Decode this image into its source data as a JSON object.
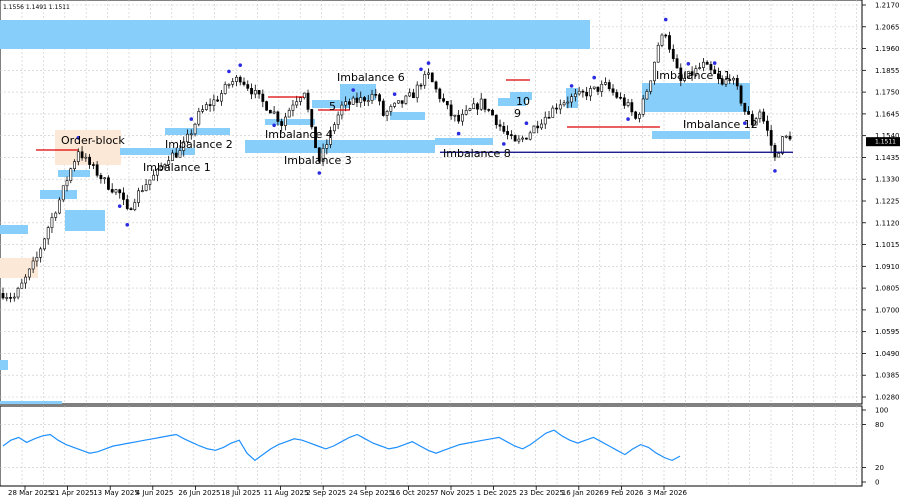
{
  "header": {
    "ohlc": "1.1556 1.1491 1.1511"
  },
  "colors": {
    "imbalance": "#87CEFA",
    "order_block": "#FCE8D6",
    "level_red": "#DD0000",
    "level_blue": "#000080",
    "wick_marker": "#2B2BE0",
    "candle": "#000000",
    "rsi_line": "#1E90FF",
    "grid": "#C8C8C8"
  },
  "chart_data": [
    {
      "type": "candlestick",
      "title": "",
      "ylim": [
        1.028,
        1.217
      ],
      "y_ticks": [
        "1.2170",
        "1.2065",
        "1.1960",
        "1.1855",
        "1.1750",
        "1.1645",
        "1.1540",
        "1.1435",
        "1.1330",
        "1.1225",
        "1.1120",
        "1.1015",
        "1.0910",
        "1.0805",
        "1.0700",
        "1.0595",
        "1.0490",
        "1.0385",
        "1.0280"
      ],
      "current_price_label": "1.1511",
      "current_price": 1.1511,
      "x_ticks": [
        "28 Mar 2025",
        "21 Apr 2025",
        "13 May 2025",
        "4 Jun 2025",
        "26 Jun 2025",
        "18 Jul 2025",
        "11 Aug 2025",
        "2 Sep 2025",
        "24 Sep 2025",
        "16 Oct 2025",
        "7 Nov 2025",
        "1 Dec 2025",
        "23 Dec 2025",
        "16 Jan 2026",
        "9 Feb 2026",
        "3 Mar 2026"
      ],
      "close_series": [
        [
          0,
          1.078
        ],
        [
          3,
          1.076
        ],
        [
          6,
          1.085
        ],
        [
          9,
          1.095
        ],
        [
          12,
          1.11
        ],
        [
          15,
          1.123
        ],
        [
          18,
          1.138
        ],
        [
          20,
          1.147
        ],
        [
          22,
          1.142
        ],
        [
          25,
          1.136
        ],
        [
          28,
          1.13
        ],
        [
          31,
          1.126
        ],
        [
          33,
          1.117
        ],
        [
          35,
          1.124
        ],
        [
          38,
          1.131
        ],
        [
          41,
          1.136
        ],
        [
          44,
          1.144
        ],
        [
          47,
          1.146
        ],
        [
          50,
          1.156
        ],
        [
          52,
          1.164
        ],
        [
          54,
          1.168
        ],
        [
          57,
          1.172
        ],
        [
          60,
          1.179
        ],
        [
          63,
          1.182
        ],
        [
          66,
          1.176
        ],
        [
          69,
          1.17
        ],
        [
          72,
          1.165
        ],
        [
          74,
          1.16
        ],
        [
          77,
          1.17
        ],
        [
          80,
          1.176
        ],
        [
          82,
          1.156
        ],
        [
          84,
          1.142
        ],
        [
          86,
          1.15
        ],
        [
          88,
          1.16
        ],
        [
          90,
          1.168
        ],
        [
          93,
          1.17
        ],
        [
          96,
          1.172
        ],
        [
          99,
          1.174
        ],
        [
          101,
          1.164
        ],
        [
          104,
          1.168
        ],
        [
          106,
          1.17
        ],
        [
          109,
          1.174
        ],
        [
          111,
          1.18
        ],
        [
          113,
          1.183
        ],
        [
          115,
          1.176
        ],
        [
          117,
          1.17
        ],
        [
          119,
          1.164
        ],
        [
          121,
          1.161
        ],
        [
          124,
          1.166
        ],
        [
          127,
          1.17
        ],
        [
          130,
          1.164
        ],
        [
          133,
          1.156
        ],
        [
          136,
          1.15
        ],
        [
          139,
          1.154
        ],
        [
          142,
          1.16
        ],
        [
          145,
          1.165
        ],
        [
          148,
          1.17
        ],
        [
          151,
          1.172
        ],
        [
          154,
          1.174
        ],
        [
          157,
          1.176
        ],
        [
          160,
          1.178
        ],
        [
          163,
          1.173
        ],
        [
          166,
          1.168
        ],
        [
          168,
          1.162
        ],
        [
          170,
          1.17
        ],
        [
          172,
          1.182
        ],
        [
          174,
          1.198
        ],
        [
          176,
          1.204
        ],
        [
          178,
          1.19
        ],
        [
          180,
          1.18
        ],
        [
          183,
          1.184
        ],
        [
          186,
          1.188
        ],
        [
          189,
          1.183
        ],
        [
          191,
          1.178
        ],
        [
          193,
          1.183
        ],
        [
          195,
          1.176
        ],
        [
          197,
          1.166
        ],
        [
          199,
          1.16
        ],
        [
          201,
          1.166
        ],
        [
          203,
          1.156
        ],
        [
          205,
          1.143
        ],
        [
          207,
          1.152
        ],
        [
          209,
          1.154
        ]
      ],
      "annotations": [
        {
          "label": "Order-block",
          "kind": "order_block"
        },
        {
          "label": "Imbalance 1",
          "kind": "imbalance"
        },
        {
          "label": "Imbalance 2",
          "kind": "imbalance"
        },
        {
          "label": "Imbalance 3",
          "kind": "imbalance"
        },
        {
          "label": "Imbalance 4",
          "kind": "imbalance"
        },
        {
          "label": "5",
          "kind": "imbalance"
        },
        {
          "label": "Imbalance 6",
          "kind": "imbalance"
        },
        {
          "label": "Imbalance 8",
          "kind": "imbalance"
        },
        {
          "label": "9",
          "kind": "imbalance"
        },
        {
          "label": "10",
          "kind": "imbalance"
        },
        {
          "label": "Imbalance 11",
          "kind": "imbalance"
        },
        {
          "label": "Imbalance 12",
          "kind": "imbalance"
        }
      ],
      "levels": [
        {
          "kind": "horizontal_line",
          "price": 1.146,
          "color_key": "level_blue"
        }
      ]
    },
    {
      "type": "line",
      "title": "",
      "ylim": [
        0,
        100
      ],
      "y_ticks": [
        "100",
        "80",
        "20",
        "0"
      ],
      "series": [
        {
          "values": [
            50,
            58,
            62,
            55,
            60,
            64,
            66,
            58,
            52,
            48,
            44,
            40,
            42,
            46,
            50,
            52,
            54,
            56,
            58,
            60,
            62,
            64,
            66,
            60,
            55,
            50,
            46,
            44,
            48,
            54,
            58,
            40,
            30,
            38,
            46,
            52,
            56,
            60,
            58,
            54,
            50,
            46,
            50,
            56,
            62,
            66,
            60,
            54,
            50,
            46,
            48,
            52,
            56,
            50,
            44,
            40,
            44,
            48,
            52,
            54,
            56,
            58,
            60,
            62,
            56,
            50,
            46,
            52,
            60,
            68,
            72,
            64,
            58,
            54,
            58,
            62,
            56,
            50,
            44,
            38,
            46,
            52,
            48,
            40,
            34,
            30,
            36
          ]
        }
      ]
    }
  ]
}
